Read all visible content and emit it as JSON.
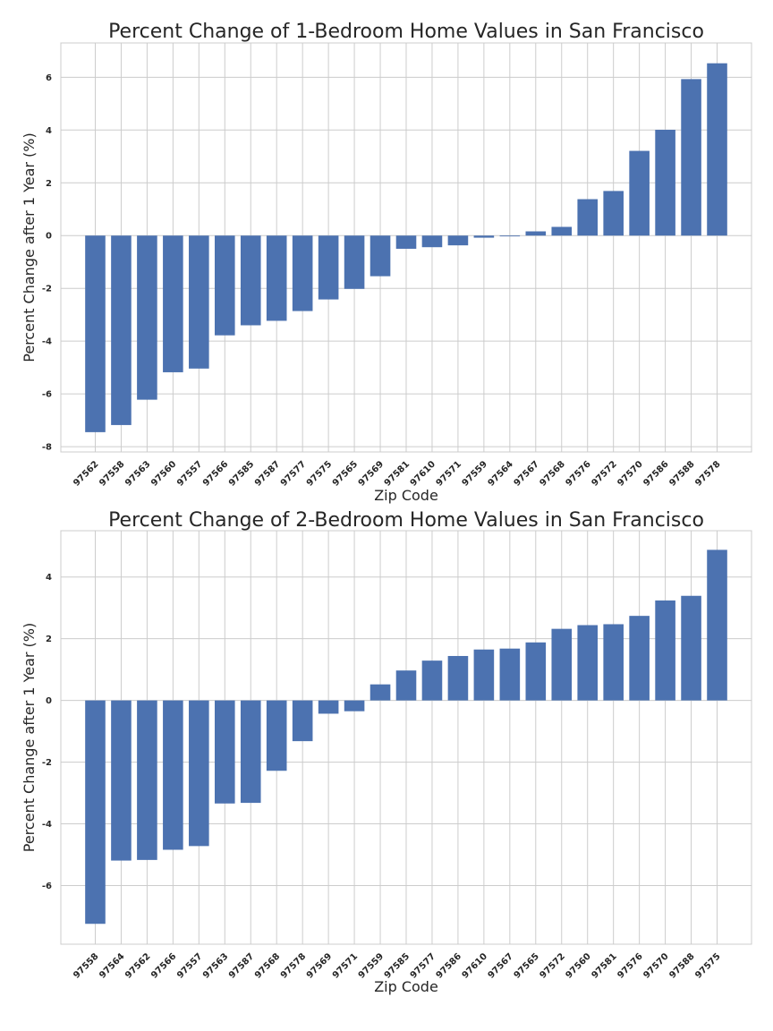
{
  "chart_data": [
    {
      "type": "bar",
      "title": "Percent Change of 1-Bedroom Home Values in San Francisco",
      "xlabel": "Zip Code",
      "ylabel": "Percent Change after 1 Year (%)",
      "categories": [
        "97562",
        "97558",
        "97563",
        "97560",
        "97557",
        "97566",
        "97585",
        "97587",
        "97577",
        "97575",
        "97565",
        "97569",
        "97581",
        "97610",
        "97571",
        "97559",
        "97564",
        "97567",
        "97568",
        "97576",
        "97572",
        "97570",
        "97586",
        "97588",
        "97578"
      ],
      "values": [
        -7.45,
        -7.18,
        -6.22,
        -5.18,
        -5.04,
        -3.78,
        -3.4,
        -3.23,
        -2.86,
        -2.42,
        -2.02,
        -1.54,
        -0.5,
        -0.44,
        -0.37,
        -0.08,
        -0.03,
        0.16,
        0.33,
        1.38,
        1.69,
        3.21,
        4.01,
        5.93,
        6.53
      ],
      "ylim": [
        -8.2,
        7.3
      ],
      "yticks": [
        -8,
        -6,
        -4,
        -2,
        0,
        2,
        4,
        6
      ],
      "grid": true,
      "color": "#4c72b0"
    },
    {
      "type": "bar",
      "title": "Percent Change of 2-Bedroom Home Values in San Francisco",
      "xlabel": "Zip Code",
      "ylabel": "Percent Change after 1 Year (%)",
      "categories": [
        "97558",
        "97564",
        "97562",
        "97566",
        "97557",
        "97563",
        "97587",
        "97568",
        "97578",
        "97569",
        "97571",
        "97559",
        "97585",
        "97577",
        "97586",
        "97610",
        "97567",
        "97565",
        "97572",
        "97560",
        "97581",
        "97576",
        "97570",
        "97588",
        "97575"
      ],
      "values": [
        -7.24,
        -5.19,
        -5.17,
        -4.84,
        -4.72,
        -3.34,
        -3.32,
        -2.28,
        -1.32,
        -0.43,
        -0.35,
        0.52,
        0.97,
        1.29,
        1.44,
        1.65,
        1.68,
        1.88,
        2.32,
        2.44,
        2.47,
        2.74,
        3.24,
        3.39,
        4.88
      ],
      "ylim": [
        -7.9,
        5.5
      ],
      "yticks": [
        -6,
        -4,
        -2,
        0,
        2,
        4
      ],
      "grid": true,
      "color": "#4c72b0"
    }
  ]
}
